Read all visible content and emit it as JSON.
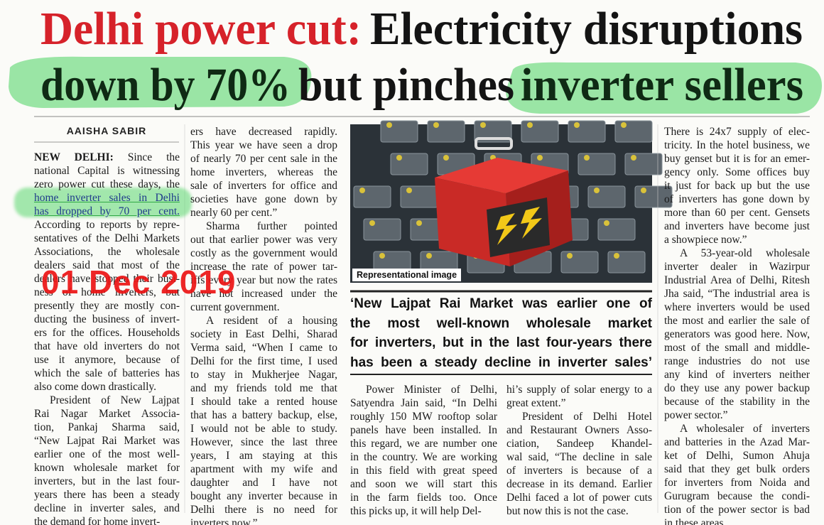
{
  "headline": {
    "line_1": [
      "Delhi power cut:",
      "Electricity disruptions"
    ],
    "line_2": [
      "down by 70%",
      "but pinches",
      "inverter sellers"
    ]
  },
  "byline": "AAISHA SABIR",
  "dateline": "NEW DELHI:",
  "columns": [
    [
      [
        "Since the",
        "national Capital is witnessing",
        "zero power cut these days, the",
        "home inverter sales in Delhi",
        "has dropped by 70 per cent.",
        "According to reports by repre-",
        "sentatives of the Delhi Markets",
        "Associations, the wholesale",
        "dealers said that most of the",
        "dealers have stopped their busi-",
        "ness of home inverters, but",
        "presently they are mostly con-",
        "ducting the business of invert-",
        "ers for the offices. Households",
        "that have old inverters do not",
        "use it anymore, because of",
        "which the sale of batteries has",
        "also come down drastically."
      ],
      [
        "President of New Lajpat",
        "Rai Nagar Market Associa-",
        "tion, Pankaj Sharma said,",
        "“New Lajpat Rai Market was",
        "earlier one of the most well-",
        "known wholesale market for",
        "inverters, but in the last four-",
        "years there has been a steady",
        "decline in inverter sales, and",
        "the demand for home invert-"
      ]
    ],
    [
      [
        "ers have decreased rapidly.",
        "This year we have seen a drop",
        "of nearly 70 per cent sale in the",
        "home inverters, whereas the",
        "sale of inverters for office and",
        "societies have gone down by",
        "nearly 60 per cent.”"
      ],
      [
        "Sharma further pointed",
        "out that earlier power was very",
        "costly as the government would",
        "increase the rate of power tar-",
        "iffs every year but now the rates",
        "have not increased under the",
        "current government."
      ],
      [
        "A resident of a housing",
        "society in East Delhi, Sharad",
        "Verma said, “When I came to",
        "Delhi for the first time, I used",
        "to stay in Mukherjee Nagar,",
        "and my friends told me that",
        "I should take a rented house",
        "that has a battery backup, else,",
        "I would not be able to study.",
        "However, since the last three",
        "years, I am staying at this",
        "apartment with my wife and",
        "daughter and I have not",
        "bought any inverter because in",
        "Delhi there is no need for",
        "inverters now.”"
      ]
    ],
    [
      [
        "Power Minister of Delhi,",
        "Satyendra Jain said, “In Delhi",
        "roughly 150 MW rooftop solar",
        "panels have been installed. In",
        "this regard, we are number one",
        "in the country. We are working",
        "in this field with great speed",
        "and soon we will start this",
        "in the farm fields too. Once",
        "this picks up, it will help Del-"
      ]
    ],
    [
      [
        "hi’s supply of solar energy to a",
        "great extent.”"
      ],
      [
        "President of Delhi Hotel",
        "and Restaurant Owners Asso-",
        "ciation, Sandeep Khandel-",
        "wal said, “The decline in sale",
        "of inverters is because of a",
        "decrease in its demand. Earlier",
        "Delhi faced a lot of power cuts",
        "but now this is not the case."
      ]
    ],
    [
      [
        "There is 24x7 supply of elec-",
        "tricity. In the hotel business, we",
        "buy genset but it is for an emer-",
        "gency only. Some offices buy",
        "it just for back up but the use",
        "of inverters has gone down by",
        "more than 60 per cent. Gensets",
        "and inverters have become just",
        "a showpiece now.”"
      ],
      [
        "A 53-year-old wholesale",
        "inverter dealer in Wazirpur",
        "Industrial Area of Delhi, Ritesh",
        "Jha said, “The industrial area is",
        "where inverters would be used",
        "the most and earlier the sale of",
        "generators was good here. Now,",
        "most of the small and middle-",
        "range industries do not use",
        "any kind of inverters neither",
        "do they use any power backup",
        "because of the stability in the",
        "power sector.”"
      ],
      [
        "A wholesaler of inverters",
        "and batteries in the Azad Mar-",
        "ket of Delhi, Sumon Ahuja",
        "said that they get bulk orders",
        "for inverters from Noida and",
        "Gurugram because the condi-",
        "tion of the power sector is bad",
        "in these areas."
      ]
    ]
  ],
  "image_caption": "Representational image",
  "pull_quote": [
    "‘New Lajpat Rai Market was earlier one of",
    "the most well-known wholesale market",
    "for inverters, but in the last four-years there",
    "has been a steady decline in inverter sales’"
  ],
  "stamp": "01 Dec 2019"
}
